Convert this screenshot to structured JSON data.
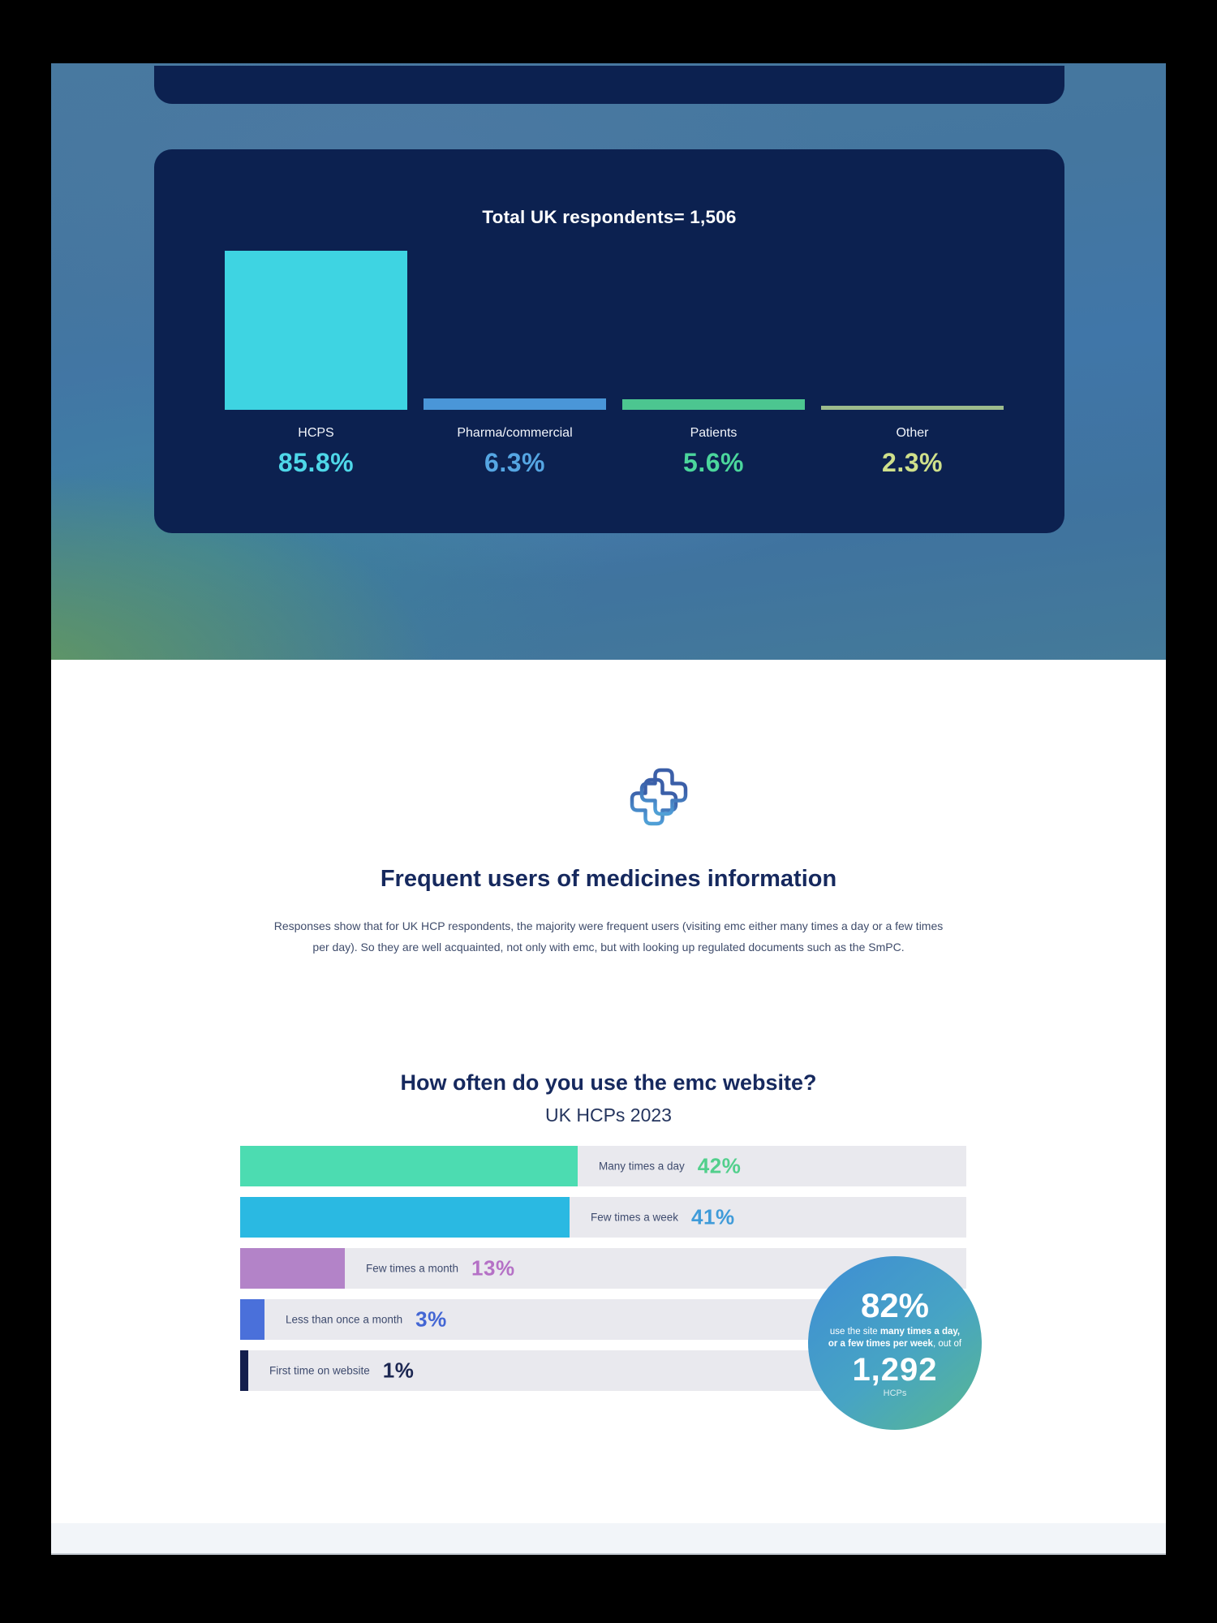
{
  "page": {
    "intro": {
      "heading": "Frequent users of medicines information",
      "paragraph": "Responses show that for UK HCP respondents, the majority were frequent users (visiting emc either many times a day or a few times per day). So they are well acquainted, not only with emc, but with looking up regulated documents such as the SmPC.",
      "heading_color": "#16295e"
    },
    "brand": {
      "card_navy": "#0c2150",
      "hero_blue": "#4076a8",
      "logo_gradient": [
        "#3b5fa8",
        "#4f9fd9",
        "#72bb4c"
      ]
    }
  },
  "chart_data": [
    {
      "type": "bar",
      "orientation": "vertical",
      "title": "Total UK respondents= 1,506",
      "categories": [
        "HCPS",
        "Pharma/commercial",
        "Patients",
        "Other"
      ],
      "values": [
        85.8,
        6.3,
        5.6,
        2.3
      ],
      "value_labels": [
        "85.8%",
        "6.3%",
        "5.6%",
        "2.3%"
      ],
      "colors": [
        "#3ed4e2",
        "#4a96d8",
        "#4cc690",
        "#9dbb8c"
      ],
      "value_colors": [
        "#4ed7e8",
        "#55a6e3",
        "#4bd69c",
        "#cfe08b"
      ],
      "ylim": [
        0,
        100
      ],
      "unit": "%",
      "background": "#0c2150",
      "grid": false,
      "legend": "none"
    },
    {
      "type": "bar",
      "orientation": "horizontal",
      "title": "How often do you use the emc website?",
      "subtitle": "UK HCPs 2023",
      "categories": [
        "Many times a day",
        "Few times a week",
        "Few times a month",
        "Less than once a month",
        "First time on website"
      ],
      "values": [
        42,
        41,
        13,
        3,
        1
      ],
      "value_labels": [
        "42%",
        "41%",
        "13%",
        "3%",
        "1%"
      ],
      "colors": [
        "#4cdcb1",
        "#2ab9e2",
        "#b383c8",
        "#4a70da",
        "#141f4d"
      ],
      "value_colors": [
        "#52cf8c",
        "#3f9bd9",
        "#b571c6",
        "#4366d4",
        "#1c2752"
      ],
      "track_color": "#e9e9ee",
      "xlim": [
        0,
        100
      ],
      "unit": "%",
      "grid": false,
      "legend": "none",
      "annotation": {
        "value_label": "82%",
        "text_parts": [
          "use the site ",
          "many times a day, or a few times per week",
          ", out of"
        ],
        "count_label": "1,292",
        "unit": "HCPs",
        "badge_gradient": [
          "#3f90d2",
          "#57b694"
        ]
      }
    }
  ]
}
